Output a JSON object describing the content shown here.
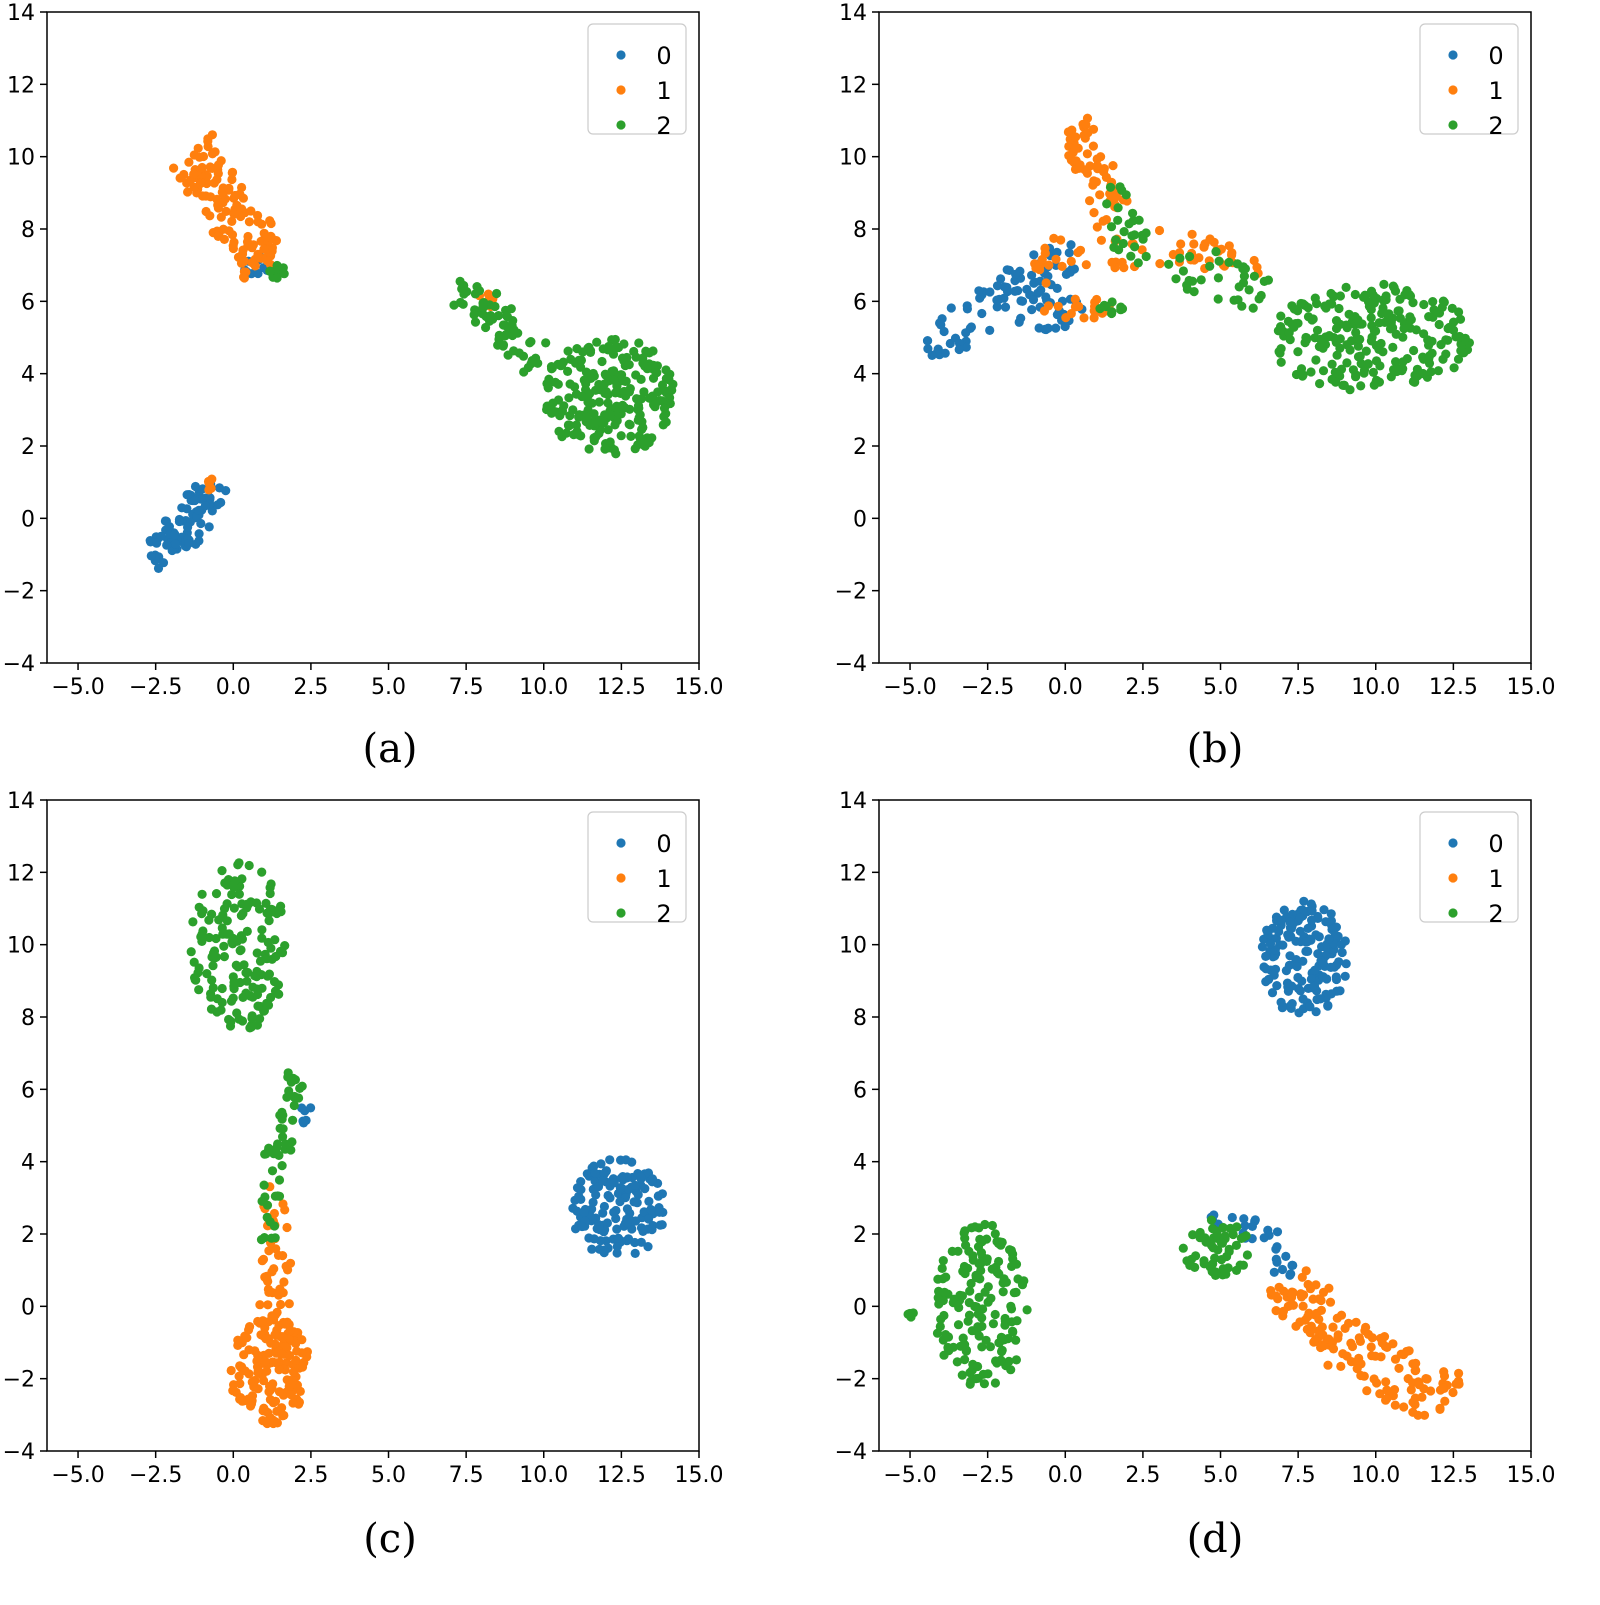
{
  "colors": {
    "class_0": "#1f77b4",
    "class_1": "#ff7f0e",
    "class_2": "#2ca02c",
    "axis": "#000000",
    "legend_border": "#cccccc"
  },
  "chart_data": [
    {
      "type": "scatter",
      "caption": "(a)",
      "xlim": [
        -6,
        15
      ],
      "ylim": [
        -4,
        14
      ],
      "xticks": [
        -5.0,
        -2.5,
        0.0,
        2.5,
        5.0,
        7.5,
        10.0,
        12.5,
        15.0
      ],
      "xtick_labels": [
        "−5.0",
        "−2.5",
        "0.0",
        "2.5",
        "5.0",
        "7.5",
        "10.0",
        "12.5",
        "15.0"
      ],
      "yticks": [
        -4,
        -2,
        0,
        2,
        4,
        6,
        8,
        10,
        12,
        14
      ],
      "ytick_labels": [
        "−4",
        "−2",
        "0",
        "2",
        "4",
        "6",
        "8",
        "10",
        "12",
        "14"
      ],
      "legend": {
        "position": "top-right",
        "entries": [
          "0",
          "1",
          "2"
        ]
      },
      "clusters": [
        {
          "label": "0",
          "n": 85,
          "seed": 11,
          "shape": "polyline",
          "path": [
            [
              -2.7,
              -0.8
            ],
            [
              -1.9,
              -0.6
            ],
            [
              -1.3,
              -0.1
            ],
            [
              -0.6,
              1.1
            ]
          ],
          "width": 0.55
        },
        {
          "label": "0",
          "n": 10,
          "seed": 12,
          "shape": "blob",
          "center": [
            0.8,
            6.9
          ],
          "radius": [
            0.55,
            0.4
          ]
        },
        {
          "label": "1",
          "n": 130,
          "seed": 13,
          "shape": "polyline",
          "path": [
            [
              -1.4,
              10.2
            ],
            [
              -0.9,
              9.5
            ],
            [
              -0.3,
              8.6
            ],
            [
              0.5,
              7.9
            ],
            [
              1.0,
              7.0
            ]
          ],
          "width": 0.75
        },
        {
          "label": "1",
          "n": 5,
          "seed": 14,
          "shape": "blob",
          "center": [
            -0.7,
            0.9
          ],
          "radius": [
            0.2,
            0.25
          ]
        },
        {
          "label": "1",
          "n": 6,
          "seed": 15,
          "shape": "blob",
          "center": [
            8.2,
            6.0
          ],
          "radius": [
            0.4,
            0.25
          ]
        },
        {
          "label": "2",
          "n": 65,
          "seed": 16,
          "shape": "polyline",
          "path": [
            [
              7.2,
              6.3
            ],
            [
              8.4,
              5.6
            ],
            [
              9.2,
              4.6
            ],
            [
              10.0,
              4.3
            ]
          ],
          "width": 0.5
        },
        {
          "label": "2",
          "n": 240,
          "seed": 17,
          "shape": "blob",
          "center": [
            12.1,
            3.4
          ],
          "radius": [
            2.1,
            1.7
          ]
        },
        {
          "label": "2",
          "n": 12,
          "seed": 18,
          "shape": "blob",
          "center": [
            1.4,
            6.8
          ],
          "radius": [
            0.3,
            0.2
          ]
        }
      ]
    },
    {
      "type": "scatter",
      "caption": "(b)",
      "xlim": [
        -6,
        15
      ],
      "ylim": [
        -4,
        14
      ],
      "xticks": [
        -5.0,
        -2.5,
        0.0,
        2.5,
        5.0,
        7.5,
        10.0,
        12.5,
        15.0
      ],
      "xtick_labels": [
        "−5.0",
        "−2.5",
        "0.0",
        "2.5",
        "5.0",
        "7.5",
        "10.0",
        "12.5",
        "15.0"
      ],
      "yticks": [
        -4,
        -2,
        0,
        2,
        4,
        6,
        8,
        10,
        12,
        14
      ],
      "ytick_labels": [
        "−4",
        "−2",
        "0",
        "2",
        "4",
        "6",
        "8",
        "10",
        "12",
        "14"
      ],
      "legend": {
        "position": "top-right",
        "entries": [
          "0",
          "1",
          "2"
        ]
      },
      "clusters": [
        {
          "label": "0",
          "n": 80,
          "seed": 21,
          "shape": "polyline",
          "path": [
            [
              -4.5,
              4.9
            ],
            [
              -3.2,
              5.3
            ],
            [
              -2.0,
              6.0
            ],
            [
              -1.0,
              6.8
            ],
            [
              0.5,
              7.0
            ]
          ],
          "width": 0.6
        },
        {
          "label": "0",
          "n": 25,
          "seed": 22,
          "shape": "blob",
          "center": [
            -0.5,
            5.7
          ],
          "radius": [
            1.2,
            0.5
          ]
        },
        {
          "label": "1",
          "n": 60,
          "seed": 23,
          "shape": "polyline",
          "path": [
            [
              0.2,
              10.9
            ],
            [
              0.8,
              10.0
            ],
            [
              1.2,
              9.0
            ],
            [
              1.6,
              8.3
            ]
          ],
          "width": 0.55
        },
        {
          "label": "1",
          "n": 60,
          "seed": 24,
          "shape": "polyline",
          "path": [
            [
              -1.0,
              6.6
            ],
            [
              0.2,
              7.6
            ],
            [
              1.8,
              7.3
            ],
            [
              3.5,
              7.6
            ],
            [
              5.0,
              7.2
            ],
            [
              6.5,
              7.0
            ]
          ],
          "width": 0.45
        },
        {
          "label": "1",
          "n": 20,
          "seed": 25,
          "shape": "blob",
          "center": [
            0.3,
            5.8
          ],
          "radius": [
            1.2,
            0.35
          ]
        },
        {
          "label": "2",
          "n": 60,
          "seed": 26,
          "shape": "polyline",
          "path": [
            [
              1.6,
              9.2
            ],
            [
              2.2,
              7.5
            ],
            [
              3.5,
              7.0
            ],
            [
              5.0,
              6.7
            ],
            [
              6.5,
              6.2
            ]
          ],
          "width": 0.6
        },
        {
          "label": "2",
          "n": 240,
          "seed": 27,
          "shape": "blob",
          "center": [
            9.8,
            5.0
          ],
          "radius": [
            3.3,
            1.5
          ]
        },
        {
          "label": "2",
          "n": 10,
          "seed": 28,
          "shape": "blob",
          "center": [
            1.5,
            5.8
          ],
          "radius": [
            0.4,
            0.2
          ]
        }
      ]
    },
    {
      "type": "scatter",
      "caption": "(c)",
      "xlim": [
        -6,
        15
      ],
      "ylim": [
        -4,
        14
      ],
      "xticks": [
        -5.0,
        -2.5,
        0.0,
        2.5,
        5.0,
        7.5,
        10.0,
        12.5,
        15.0
      ],
      "xtick_labels": [
        "−5.0",
        "−2.5",
        "0.0",
        "2.5",
        "5.0",
        "7.5",
        "10.0",
        "12.5",
        "15.0"
      ],
      "yticks": [
        -4,
        -2,
        0,
        2,
        4,
        6,
        8,
        10,
        12,
        14
      ],
      "ytick_labels": [
        "−4",
        "−2",
        "0",
        "2",
        "4",
        "6",
        "8",
        "10",
        "12",
        "14"
      ],
      "legend": {
        "position": "top-right",
        "entries": [
          "0",
          "1",
          "2"
        ]
      },
      "clusters": [
        {
          "label": "0",
          "n": 150,
          "seed": 31,
          "shape": "blob",
          "center": [
            12.4,
            2.7
          ],
          "radius": [
            1.5,
            1.4
          ]
        },
        {
          "label": "0",
          "n": 6,
          "seed": 32,
          "shape": "blob",
          "center": [
            2.3,
            5.3
          ],
          "radius": [
            0.3,
            0.25
          ]
        },
        {
          "label": "1",
          "n": 160,
          "seed": 33,
          "shape": "blob",
          "center": [
            1.2,
            -1.8
          ],
          "radius": [
            1.3,
            1.5
          ]
        },
        {
          "label": "1",
          "n": 45,
          "seed": 34,
          "shape": "polyline",
          "path": [
            [
              1.4,
              3.3
            ],
            [
              1.3,
              2.0
            ],
            [
              1.5,
              0.8
            ],
            [
              1.2,
              -0.2
            ]
          ],
          "width": 0.45
        },
        {
          "label": "2",
          "n": 170,
          "seed": 35,
          "shape": "blob",
          "center": [
            0.2,
            10.0
          ],
          "radius": [
            1.6,
            2.4
          ]
        },
        {
          "label": "2",
          "n": 50,
          "seed": 36,
          "shape": "polyline",
          "path": [
            [
              2.0,
              6.4
            ],
            [
              1.8,
              5.2
            ],
            [
              1.3,
              4.0
            ],
            [
              1.2,
              2.8
            ],
            [
              1.0,
              1.8
            ]
          ],
          "width": 0.35
        }
      ]
    },
    {
      "type": "scatter",
      "caption": "(d)",
      "xlim": [
        -6,
        15
      ],
      "ylim": [
        -4,
        14
      ],
      "xticks": [
        -5.0,
        -2.5,
        0.0,
        2.5,
        5.0,
        7.5,
        10.0,
        12.5,
        15.0
      ],
      "xtick_labels": [
        "−5.0",
        "−2.5",
        "0.0",
        "2.5",
        "5.0",
        "7.5",
        "10.0",
        "12.5",
        "15.0"
      ],
      "yticks": [
        -4,
        -2,
        0,
        2,
        4,
        6,
        8,
        10,
        12,
        14
      ],
      "ytick_labels": [
        "−4",
        "−2",
        "0",
        "2",
        "4",
        "6",
        "8",
        "10",
        "12",
        "14"
      ],
      "legend": {
        "position": "top-right",
        "entries": [
          "0",
          "1",
          "2"
        ]
      },
      "clusters": [
        {
          "label": "0",
          "n": 170,
          "seed": 41,
          "shape": "blob",
          "center": [
            7.7,
            9.6
          ],
          "radius": [
            1.4,
            1.6
          ]
        },
        {
          "label": "0",
          "n": 30,
          "seed": 42,
          "shape": "polyline",
          "path": [
            [
              4.6,
              2.5
            ],
            [
              5.8,
              2.2
            ],
            [
              6.5,
              2.0
            ],
            [
              7.2,
              0.8
            ]
          ],
          "width": 0.3
        },
        {
          "label": "1",
          "n": 150,
          "seed": 43,
          "shape": "polyline",
          "path": [
            [
              6.8,
              0.8
            ],
            [
              8.3,
              -0.4
            ],
            [
              9.8,
              -1.5
            ],
            [
              11.3,
              -2.2
            ],
            [
              12.5,
              -2.6
            ]
          ],
          "width": 0.8
        },
        {
          "label": "2",
          "n": 160,
          "seed": 44,
          "shape": "blob",
          "center": [
            -2.7,
            0.0
          ],
          "radius": [
            1.5,
            2.3
          ]
        },
        {
          "label": "2",
          "n": 55,
          "seed": 45,
          "shape": "blob",
          "center": [
            4.9,
            1.6
          ],
          "radius": [
            1.1,
            0.8
          ]
        },
        {
          "label": "2",
          "n": 4,
          "seed": 46,
          "shape": "blob",
          "center": [
            -5.0,
            -0.3
          ],
          "radius": [
            0.25,
            0.15
          ]
        }
      ]
    }
  ]
}
